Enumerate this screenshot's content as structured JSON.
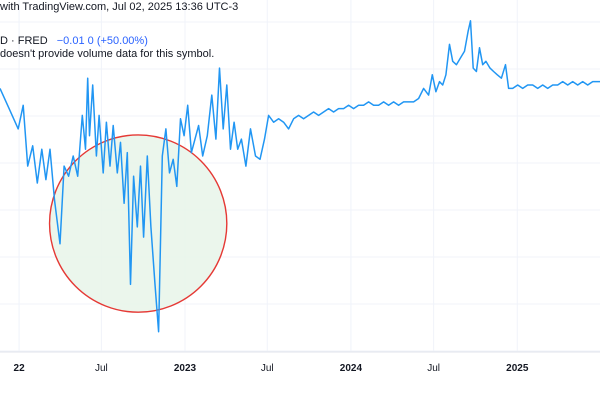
{
  "header": {
    "attribution_text": "with TradingView.com, Jul 02, 2025 13:36 UTC-3",
    "symbol_text": "D · FRED",
    "change_text": "−0.01  0",
    "change_pct_text": "(+50.00%)",
    "notice_text": "doesn't provide volume data for this symbol."
  },
  "colors": {
    "line": "#2196f3",
    "circle_stroke": "#e53935",
    "circle_fill": "#e8f5e9",
    "grid": "#f0f3fa",
    "axis_border": "#e0e3eb"
  },
  "chart_data": {
    "type": "line",
    "title": "",
    "xlabel": "",
    "ylabel": "",
    "x_ticks": [
      "22",
      "Jul",
      "2023",
      "Jul",
      "2024",
      "Jul",
      "2025"
    ],
    "x_range": [
      "2021-11-20",
      "2025-07-02"
    ],
    "y_range": [
      0,
      1
    ],
    "grid": true,
    "series": [
      {
        "values": [
          [
            "2021-11-20",
            0.78
          ],
          [
            "2021-12-10",
            0.72
          ],
          [
            "2021-12-30",
            0.66
          ],
          [
            "2022-01-10",
            0.73
          ],
          [
            "2022-01-20",
            0.55
          ],
          [
            "2022-01-31",
            0.61
          ],
          [
            "2022-02-10",
            0.5
          ],
          [
            "2022-02-20",
            0.6
          ],
          [
            "2022-03-01",
            0.51
          ],
          [
            "2022-03-10",
            0.6
          ],
          [
            "2022-03-20",
            0.45
          ],
          [
            "2022-04-01",
            0.32
          ],
          [
            "2022-04-10",
            0.55
          ],
          [
            "2022-04-20",
            0.52
          ],
          [
            "2022-04-30",
            0.58
          ],
          [
            "2022-05-10",
            0.52
          ],
          [
            "2022-05-20",
            0.7
          ],
          [
            "2022-05-27",
            0.6
          ],
          [
            "2022-06-01",
            0.81
          ],
          [
            "2022-06-05",
            0.64
          ],
          [
            "2022-06-12",
            0.79
          ],
          [
            "2022-06-20",
            0.58
          ],
          [
            "2022-06-26",
            0.7
          ],
          [
            "2022-07-05",
            0.53
          ],
          [
            "2022-07-12",
            0.68
          ],
          [
            "2022-07-20",
            0.55
          ],
          [
            "2022-07-27",
            0.67
          ],
          [
            "2022-08-05",
            0.53
          ],
          [
            "2022-08-12",
            0.62
          ],
          [
            "2022-08-20",
            0.44
          ],
          [
            "2022-08-27",
            0.59
          ],
          [
            "2022-09-03",
            0.2
          ],
          [
            "2022-09-10",
            0.52
          ],
          [
            "2022-09-18",
            0.37
          ],
          [
            "2022-09-25",
            0.55
          ],
          [
            "2022-10-02",
            0.34
          ],
          [
            "2022-10-10",
            0.58
          ],
          [
            "2022-10-18",
            0.37
          ],
          [
            "2022-10-27",
            0.2
          ],
          [
            "2022-11-04",
            0.06
          ],
          [
            "2022-11-12",
            0.58
          ],
          [
            "2022-11-20",
            0.66
          ],
          [
            "2022-11-28",
            0.53
          ],
          [
            "2022-12-06",
            0.57
          ],
          [
            "2022-12-14",
            0.49
          ],
          [
            "2022-12-22",
            0.69
          ],
          [
            "2022-12-30",
            0.64
          ],
          [
            "2023-01-07",
            0.73
          ],
          [
            "2023-01-15",
            0.59
          ],
          [
            "2023-01-23",
            0.63
          ],
          [
            "2023-01-31",
            0.67
          ],
          [
            "2023-02-09",
            0.58
          ],
          [
            "2023-02-19",
            0.64
          ],
          [
            "2023-03-01",
            0.76
          ],
          [
            "2023-03-10",
            0.63
          ],
          [
            "2023-03-18",
            0.84
          ],
          [
            "2023-03-26",
            0.66
          ],
          [
            "2023-04-03",
            0.79
          ],
          [
            "2023-04-11",
            0.6
          ],
          [
            "2023-04-19",
            0.68
          ],
          [
            "2023-04-27",
            0.6
          ],
          [
            "2023-05-05",
            0.63
          ],
          [
            "2023-05-15",
            0.55
          ],
          [
            "2023-05-25",
            0.66
          ],
          [
            "2023-06-05",
            0.58
          ],
          [
            "2023-06-15",
            0.57
          ],
          [
            "2023-06-25",
            0.63
          ],
          [
            "2023-07-04",
            0.7
          ],
          [
            "2023-07-15",
            0.68
          ],
          [
            "2023-07-26",
            0.69
          ],
          [
            "2023-08-06",
            0.68
          ],
          [
            "2023-08-17",
            0.66
          ],
          [
            "2023-08-28",
            0.69
          ],
          [
            "2023-09-08",
            0.7
          ],
          [
            "2023-09-19",
            0.69
          ],
          [
            "2023-09-30",
            0.7
          ],
          [
            "2023-10-11",
            0.71
          ],
          [
            "2023-10-22",
            0.7
          ],
          [
            "2023-11-02",
            0.71
          ],
          [
            "2023-11-13",
            0.72
          ],
          [
            "2023-11-24",
            0.71
          ],
          [
            "2023-12-05",
            0.72
          ],
          [
            "2023-12-16",
            0.72
          ],
          [
            "2023-12-27",
            0.73
          ],
          [
            "2024-01-07",
            0.72
          ],
          [
            "2024-01-18",
            0.73
          ],
          [
            "2024-01-29",
            0.73
          ],
          [
            "2024-02-09",
            0.74
          ],
          [
            "2024-02-20",
            0.73
          ],
          [
            "2024-03-02",
            0.73
          ],
          [
            "2024-03-13",
            0.74
          ],
          [
            "2024-03-24",
            0.73
          ],
          [
            "2024-04-04",
            0.74
          ],
          [
            "2024-04-15",
            0.73
          ],
          [
            "2024-04-26",
            0.74
          ],
          [
            "2024-05-07",
            0.74
          ],
          [
            "2024-05-18",
            0.74
          ],
          [
            "2024-05-29",
            0.75
          ],
          [
            "2024-06-09",
            0.78
          ],
          [
            "2024-06-20",
            0.76
          ],
          [
            "2024-06-28",
            0.82
          ],
          [
            "2024-07-06",
            0.77
          ],
          [
            "2024-07-14",
            0.8
          ],
          [
            "2024-07-21",
            0.79
          ],
          [
            "2024-07-28",
            0.82
          ],
          [
            "2024-08-05",
            0.91
          ],
          [
            "2024-08-12",
            0.86
          ],
          [
            "2024-08-20",
            0.85
          ],
          [
            "2024-08-29",
            0.87
          ],
          [
            "2024-09-07",
            0.89
          ],
          [
            "2024-09-15",
            0.95
          ],
          [
            "2024-09-20",
            0.98
          ],
          [
            "2024-09-26",
            0.84
          ],
          [
            "2024-10-03",
            0.83
          ],
          [
            "2024-10-10",
            0.9
          ],
          [
            "2024-10-17",
            0.85
          ],
          [
            "2024-10-24",
            0.86
          ],
          [
            "2024-11-02",
            0.84
          ],
          [
            "2024-11-10",
            0.83
          ],
          [
            "2024-11-18",
            0.82
          ],
          [
            "2024-11-27",
            0.81
          ],
          [
            "2024-12-06",
            0.85
          ],
          [
            "2024-12-13",
            0.78
          ],
          [
            "2024-12-22",
            0.78
          ],
          [
            "2025-01-02",
            0.79
          ],
          [
            "2025-01-13",
            0.78
          ],
          [
            "2025-01-24",
            0.79
          ],
          [
            "2025-02-04",
            0.79
          ],
          [
            "2025-02-15",
            0.78
          ],
          [
            "2025-02-26",
            0.79
          ],
          [
            "2025-03-09",
            0.78
          ],
          [
            "2025-03-20",
            0.79
          ],
          [
            "2025-03-31",
            0.79
          ],
          [
            "2025-04-11",
            0.8
          ],
          [
            "2025-04-22",
            0.79
          ],
          [
            "2025-05-03",
            0.8
          ],
          [
            "2025-05-14",
            0.79
          ],
          [
            "2025-05-25",
            0.8
          ],
          [
            "2025-06-05",
            0.79
          ],
          [
            "2025-06-16",
            0.8
          ],
          [
            "2025-06-27",
            0.8
          ],
          [
            "2025-07-02",
            0.8
          ]
        ]
      }
    ],
    "annotations": [
      {
        "type": "circle",
        "center": [
          "2022-09-20",
          0.38
        ],
        "radius_days": 195
      }
    ]
  }
}
